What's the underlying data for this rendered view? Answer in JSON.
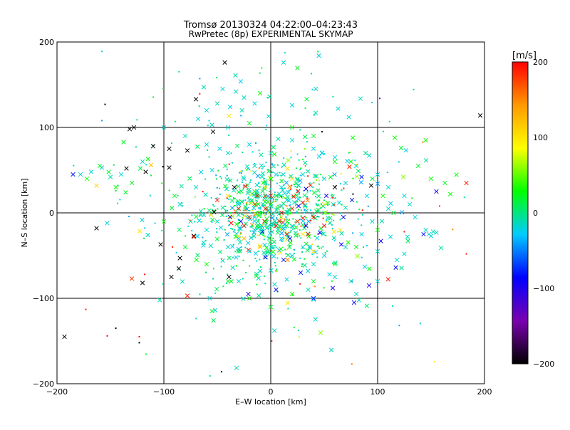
{
  "chart_data": {
    "type": "scatter",
    "title": "Tromsø 20130324 04:22:00–04:23:43",
    "subtitle": "RwPretec (8p) EXPERIMENTAL SKYMAP",
    "xlabel": "E–W location [km]",
    "ylabel": "N–S location [km]",
    "xlim": [
      -200,
      200
    ],
    "ylim": [
      -200,
      200
    ],
    "x_ticks": [
      -200,
      -100,
      0,
      100,
      200
    ],
    "y_ticks": [
      -200,
      -100,
      0,
      100,
      200
    ],
    "x_tick_labels": [
      "−200",
      "−100",
      "0",
      "100",
      "200"
    ],
    "y_tick_labels": [
      "−200",
      "−100",
      "0",
      "100",
      "200"
    ],
    "grid": true,
    "colorbar": {
      "label": "[m/s]",
      "range": [
        -200,
        200
      ],
      "ticks": [
        -200,
        -100,
        0,
        100,
        200
      ],
      "tick_labels": [
        "−200",
        "−100",
        "0",
        "100",
        "200"
      ],
      "colors": [
        "#000000",
        "#7a00b0",
        "#0000ff",
        "#00ccff",
        "#00ff00",
        "#ffff00",
        "#ff9900",
        "#ff0000"
      ]
    },
    "points": [
      [
        -132,
        98,
        -200,
        "x"
      ],
      [
        -128,
        100,
        -200,
        "x"
      ],
      [
        -43,
        176,
        -200,
        "x"
      ],
      [
        -70,
        133,
        -200,
        "x"
      ],
      [
        -54,
        95,
        -200,
        "x"
      ],
      [
        -110,
        78,
        -200,
        "x"
      ],
      [
        -95,
        75,
        -200,
        "x"
      ],
      [
        -95,
        53,
        -200,
        "x"
      ],
      [
        -78,
        73,
        -200,
        "x"
      ],
      [
        -135,
        52,
        -200,
        "x"
      ],
      [
        -117,
        48,
        -200,
        "x"
      ],
      [
        -163,
        -18,
        -200,
        "x"
      ],
      [
        -103,
        -37,
        -200,
        "x"
      ],
      [
        -86,
        -65,
        -200,
        "x"
      ],
      [
        -120,
        -82,
        -200,
        "x"
      ],
      [
        -123,
        -152,
        -200,
        "."
      ],
      [
        -145,
        -135,
        -200,
        "."
      ],
      [
        -193,
        -145,
        -200,
        "x"
      ],
      [
        -46,
        -186,
        -200,
        "."
      ],
      [
        196,
        114,
        -200,
        "x"
      ],
      [
        94,
        32,
        -200,
        "x"
      ],
      [
        77,
        22,
        -200,
        "."
      ],
      [
        60,
        30,
        -200,
        "x"
      ],
      [
        -53,
        1,
        -200,
        "x"
      ],
      [
        -39,
        -75,
        -200,
        "x"
      ],
      [
        -85,
        -53,
        -200,
        "x"
      ],
      [
        -93,
        -75,
        -200,
        "x"
      ],
      [
        -101,
        54,
        -200,
        "."
      ],
      [
        -34,
        30,
        -200,
        "x"
      ],
      [
        -72,
        -27,
        -200,
        "x"
      ],
      [
        -155,
        127,
        -200,
        "."
      ],
      [
        48,
        95,
        -200,
        "."
      ],
      [
        102,
        134,
        -120,
        "."
      ],
      [
        -185,
        45,
        -80,
        "x"
      ],
      [
        155,
        25,
        -90,
        "x"
      ],
      [
        143,
        -25,
        -80,
        "x"
      ],
      [
        92,
        -85,
        -100,
        "x"
      ],
      [
        117,
        -64,
        -80,
        "x"
      ],
      [
        -21,
        -95,
        -100,
        "x"
      ],
      [
        28,
        -70,
        -80,
        "x"
      ],
      [
        78,
        -105,
        -90,
        "x"
      ],
      [
        58,
        -88,
        -100,
        "x"
      ],
      [
        103,
        -33,
        -90,
        "x"
      ],
      [
        -8,
        -22,
        -80,
        "x"
      ],
      [
        18,
        -30,
        -85,
        "x"
      ],
      [
        33,
        -15,
        -90,
        "x"
      ],
      [
        46,
        -23,
        -85,
        "x"
      ],
      [
        68,
        -5,
        -90,
        "x"
      ],
      [
        52,
        20,
        -95,
        "x"
      ],
      [
        33,
        28,
        -90,
        "x"
      ],
      [
        85,
        42,
        -80,
        "x"
      ],
      [
        -38,
        -5,
        -85,
        "x"
      ],
      [
        -5,
        -52,
        -90,
        "x"
      ],
      [
        12,
        -55,
        -80,
        "x"
      ],
      [
        66,
        -37,
        -90,
        "x"
      ],
      [
        5,
        -90,
        -85,
        "x"
      ],
      [
        40,
        -100,
        -80,
        "x"
      ],
      [
        -28,
        -10,
        -85,
        "x"
      ],
      [
        26,
        8,
        -90,
        "x"
      ],
      [
        76,
        15,
        -80,
        "x"
      ],
      [
        -158,
        189,
        -20,
        "."
      ],
      [
        -158,
        108,
        -40,
        "."
      ],
      [
        45,
        184,
        -20,
        "x"
      ],
      [
        12,
        176,
        -15,
        "x"
      ],
      [
        38,
        163,
        -25,
        "."
      ],
      [
        -33,
        161,
        -10,
        "x"
      ],
      [
        -45,
        145,
        -20,
        "x"
      ],
      [
        -25,
        135,
        -15,
        "x"
      ],
      [
        -60,
        120,
        -20,
        "x"
      ],
      [
        -50,
        128,
        -10,
        "x"
      ],
      [
        -38,
        124,
        -25,
        "x"
      ],
      [
        -68,
        110,
        -20,
        "x"
      ],
      [
        -55,
        103,
        -15,
        "x"
      ],
      [
        -40,
        100,
        -20,
        "x"
      ],
      [
        -27,
        120,
        -10,
        "x"
      ],
      [
        -15,
        128,
        -20,
        "x"
      ],
      [
        -2,
        113,
        -15,
        "x"
      ],
      [
        20,
        126,
        -20,
        "x"
      ],
      [
        42,
        117,
        -10,
        "x"
      ],
      [
        63,
        122,
        -20,
        "x"
      ],
      [
        73,
        112,
        -15,
        "x"
      ],
      [
        -158,
        53,
        -15,
        "x"
      ],
      [
        -168,
        48,
        -20,
        "x"
      ],
      [
        -150,
        42,
        -10,
        "x"
      ],
      [
        -178,
        45,
        -15,
        "x"
      ],
      [
        -153,
        -12,
        -20,
        "x"
      ],
      [
        -115,
        -26,
        -15,
        "x"
      ],
      [
        -63,
        -38,
        -20,
        "x"
      ],
      [
        -45,
        -56,
        -15,
        "x"
      ],
      [
        -57,
        -100,
        -20,
        "x"
      ],
      [
        -52,
        -114,
        -15,
        "x"
      ],
      [
        -30,
        -80,
        -20,
        "x"
      ],
      [
        -10,
        -68,
        -15,
        "x"
      ],
      [
        15,
        -78,
        -20,
        "x"
      ],
      [
        35,
        -90,
        -15,
        "x"
      ],
      [
        55,
        -72,
        -20,
        "x"
      ],
      [
        75,
        -80,
        -15,
        "x"
      ],
      [
        88,
        -63,
        -20,
        "x"
      ],
      [
        100,
        -45,
        -15,
        "x"
      ],
      [
        112,
        -28,
        -20,
        "x"
      ],
      [
        128,
        -28,
        -15,
        "x"
      ],
      [
        148,
        -25,
        -20,
        "x"
      ],
      [
        152,
        -22,
        -10,
        "x"
      ],
      [
        145,
        -20,
        -15,
        "x"
      ],
      [
        150,
        -27,
        -20,
        "x"
      ],
      [
        155,
        -23,
        -15,
        "x"
      ],
      [
        125,
        -48,
        -20,
        "x"
      ],
      [
        118,
        -55,
        -15,
        "x"
      ],
      [
        100,
        -80,
        -20,
        "x"
      ],
      [
        80,
        -95,
        -15,
        "x"
      ],
      [
        60,
        -75,
        -20,
        "x"
      ],
      [
        40,
        -60,
        -15,
        "x"
      ],
      [
        20,
        -50,
        -20,
        "x"
      ],
      [
        0,
        -40,
        -15,
        "x"
      ],
      [
        -20,
        -45,
        -20,
        "x"
      ],
      [
        -40,
        -40,
        -15,
        "x"
      ],
      [
        -60,
        -20,
        -20,
        "x"
      ],
      [
        -75,
        -10,
        -15,
        "x"
      ],
      [
        -85,
        10,
        -20,
        "x"
      ],
      [
        -70,
        30,
        -15,
        "x"
      ],
      [
        -55,
        50,
        -20,
        "x"
      ],
      [
        -40,
        70,
        -15,
        "x"
      ],
      [
        -20,
        80,
        -20,
        "x"
      ],
      [
        0,
        70,
        -15,
        "x"
      ],
      [
        20,
        85,
        -20,
        "x"
      ],
      [
        40,
        75,
        -15,
        "x"
      ],
      [
        60,
        65,
        -20,
        "x"
      ],
      [
        80,
        55,
        -15,
        "x"
      ],
      [
        100,
        45,
        -20,
        "x"
      ],
      [
        110,
        30,
        -15,
        "x"
      ],
      [
        125,
        20,
        -20,
        "x"
      ],
      [
        130,
        10,
        -15,
        "x"
      ],
      [
        135,
        -5,
        -20,
        "x"
      ],
      [
        95,
        -10,
        -15,
        "x"
      ],
      [
        85,
        -25,
        -20,
        "x"
      ],
      [
        70,
        -40,
        -15,
        "x"
      ],
      [
        50,
        -50,
        -20,
        "x"
      ],
      [
        30,
        -40,
        -15,
        "x"
      ],
      [
        10,
        -30,
        -20,
        "x"
      ],
      [
        -10,
        -20,
        -15,
        "x"
      ],
      [
        -30,
        -30,
        -20,
        "x"
      ],
      [
        -50,
        -10,
        -15,
        "x"
      ],
      [
        -30,
        10,
        -20,
        "x"
      ],
      [
        -10,
        20,
        -15,
        "x"
      ],
      [
        10,
        30,
        -20,
        "x"
      ],
      [
        30,
        45,
        -15,
        "x"
      ],
      [
        50,
        40,
        -20,
        "x"
      ],
      [
        70,
        35,
        -15,
        "x"
      ],
      [
        90,
        20,
        -20,
        "x"
      ],
      [
        110,
        5,
        -15,
        "x"
      ],
      [
        -60,
        80,
        -20,
        "x"
      ],
      [
        -80,
        90,
        -15,
        "x"
      ],
      [
        -100,
        100,
        -20,
        "x"
      ],
      [
        -120,
        60,
        -15,
        "x"
      ],
      [
        -140,
        45,
        -20,
        "x"
      ],
      [
        -5,
        35,
        -15,
        "x"
      ],
      [
        5,
        45,
        -20,
        "x"
      ],
      [
        -15,
        55,
        -15,
        "x"
      ],
      [
        -25,
        40,
        -20,
        "x"
      ],
      [
        15,
        15,
        -15,
        "x"
      ],
      [
        -20,
        15,
        -20,
        "x"
      ],
      [
        25,
        -10,
        -15,
        "x"
      ],
      [
        -15,
        -5,
        -20,
        "x"
      ],
      [
        116,
        88,
        30,
        "x"
      ],
      [
        122,
        76,
        20,
        "x"
      ],
      [
        145,
        85,
        30,
        "x"
      ],
      [
        138,
        55,
        20,
        "x"
      ],
      [
        150,
        40,
        30,
        "x"
      ],
      [
        163,
        35,
        20,
        "x"
      ],
      [
        168,
        22,
        30,
        "x"
      ],
      [
        -122,
        52,
        20,
        "x"
      ],
      [
        -115,
        63,
        30,
        "x"
      ],
      [
        -130,
        35,
        20,
        "x"
      ],
      [
        -145,
        30,
        30,
        "x"
      ],
      [
        -160,
        55,
        20,
        "x"
      ],
      [
        -172,
        40,
        30,
        "x"
      ],
      [
        -55,
        -115,
        20,
        "x"
      ],
      [
        60,
        60,
        30,
        "x"
      ],
      [
        40,
        90,
        20,
        "x"
      ],
      [
        20,
        100,
        30,
        "x"
      ],
      [
        -20,
        105,
        20,
        "x"
      ],
      [
        -10,
        140,
        30,
        "x"
      ],
      [
        -90,
        20,
        20,
        "x"
      ],
      [
        -100,
        -10,
        30,
        "x"
      ],
      [
        -80,
        -40,
        20,
        "x"
      ],
      [
        -60,
        -60,
        30,
        "x"
      ],
      [
        -40,
        -80,
        20,
        "x"
      ],
      [
        -20,
        -100,
        30,
        "x"
      ],
      [
        0,
        -110,
        20,
        "x"
      ],
      [
        20,
        -95,
        30,
        "x"
      ],
      [
        40,
        -80,
        20,
        "x"
      ],
      [
        60,
        -60,
        30,
        "x"
      ],
      [
        80,
        -40,
        20,
        "x"
      ],
      [
        100,
        -20,
        30,
        "x"
      ],
      [
        115,
        0,
        20,
        "x"
      ],
      [
        105,
        20,
        30,
        "x"
      ],
      [
        95,
        40,
        20,
        "x"
      ],
      [
        75,
        60,
        30,
        "x"
      ],
      [
        -10,
        0,
        20,
        "x"
      ],
      [
        0,
        10,
        30,
        "x"
      ],
      [
        10,
        0,
        20,
        "x"
      ],
      [
        -5,
        -10,
        30,
        "x"
      ],
      [
        5,
        20,
        20,
        "x"
      ],
      [
        -15,
        25,
        30,
        "x"
      ],
      [
        15,
        -15,
        20,
        "x"
      ],
      [
        -163,
        32,
        110,
        "x"
      ],
      [
        -112,
        56,
        120,
        "x"
      ],
      [
        -5,
        30,
        100,
        "x"
      ],
      [
        10,
        -5,
        110,
        "x"
      ],
      [
        30,
        -25,
        100,
        "x"
      ],
      [
        -25,
        -30,
        120,
        "x"
      ],
      [
        50,
        10,
        100,
        "x"
      ],
      [
        -40,
        20,
        110,
        "x"
      ],
      [
        20,
        40,
        100,
        "x"
      ],
      [
        -10,
        -40,
        120,
        "x"
      ],
      [
        65,
        -20,
        100,
        "x"
      ],
      [
        40,
        -45,
        110,
        "x"
      ],
      [
        -130,
        -77,
        180,
        "x"
      ],
      [
        -72,
        -28,
        190,
        "x"
      ],
      [
        -78,
        -97,
        190,
        "x"
      ],
      [
        -20,
        -5,
        180,
        "x"
      ],
      [
        -25,
        -15,
        190,
        "x"
      ],
      [
        10,
        0,
        200,
        "x"
      ],
      [
        20,
        5,
        190,
        "x"
      ],
      [
        25,
        -10,
        180,
        "x"
      ],
      [
        5,
        -15,
        200,
        "x"
      ],
      [
        -5,
        5,
        190,
        "x"
      ],
      [
        -15,
        10,
        180,
        "x"
      ],
      [
        30,
        12,
        190,
        "x"
      ],
      [
        40,
        -5,
        200,
        "x"
      ],
      [
        -30,
        5,
        180,
        "x"
      ],
      [
        35,
        -25,
        190,
        "x"
      ],
      [
        -37,
        -12,
        200,
        "x"
      ],
      [
        -50,
        15,
        190,
        "x"
      ],
      [
        0,
        20,
        180,
        "x"
      ],
      [
        50,
        -15,
        200,
        "x"
      ],
      [
        15,
        -25,
        190,
        "x"
      ],
      [
        183,
        35,
        190,
        "x"
      ],
      [
        158,
        8,
        180,
        "."
      ],
      [
        183,
        -48,
        190,
        "."
      ],
      [
        -173,
        -113,
        190,
        "."
      ],
      [
        -123,
        -145,
        200,
        "."
      ],
      [
        -92,
        -40,
        180,
        "."
      ],
      [
        -118,
        -72,
        190,
        "."
      ],
      [
        -153,
        -144,
        200,
        "."
      ]
    ],
    "background_points": {
      "description": "",
      "count": 900,
      "center": [
        0,
        0
      ],
      "spread_km": 45
    }
  }
}
